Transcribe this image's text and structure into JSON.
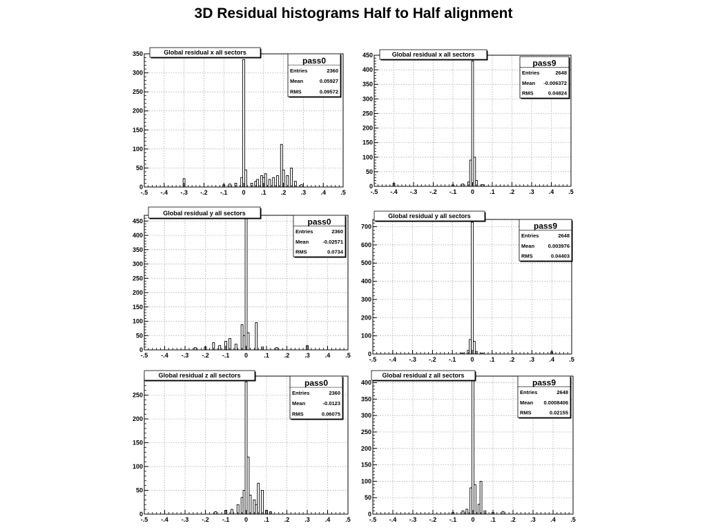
{
  "page_title": "3D Residual histograms Half to Half alignment",
  "chart_data": [
    {
      "type": "histogram",
      "histogram_title": "Global residual x all sectors",
      "xlim": [
        -0.5,
        0.5
      ],
      "ylim": [
        0,
        350
      ],
      "x_ticks": [
        -0.5,
        -0.4,
        -0.3,
        -0.2,
        -0.1,
        0,
        0.1,
        0.2,
        0.3,
        0.4,
        0.5
      ],
      "y_ticks": [
        0,
        50,
        100,
        150,
        200,
        250,
        300,
        350
      ],
      "grid": true,
      "stats": {
        "name": "pass0",
        "entries": "2360",
        "mean": "0.05927",
        "rms": "0.09572"
      },
      "bins": [
        {
          "x": -0.3,
          "y": 22
        },
        {
          "x": -0.1,
          "y": 6
        },
        {
          "x": -0.07,
          "y": 8
        },
        {
          "x": -0.04,
          "y": 10
        },
        {
          "x": -0.01,
          "y": 25
        },
        {
          "x": 0.0,
          "y": 335
        },
        {
          "x": 0.01,
          "y": 45
        },
        {
          "x": 0.04,
          "y": 10
        },
        {
          "x": 0.06,
          "y": 15
        },
        {
          "x": 0.07,
          "y": 20
        },
        {
          "x": 0.09,
          "y": 30
        },
        {
          "x": 0.1,
          "y": 25
        },
        {
          "x": 0.11,
          "y": 35
        },
        {
          "x": 0.13,
          "y": 20
        },
        {
          "x": 0.15,
          "y": 25
        },
        {
          "x": 0.17,
          "y": 30
        },
        {
          "x": 0.19,
          "y": 112
        },
        {
          "x": 0.2,
          "y": 45
        },
        {
          "x": 0.22,
          "y": 30
        },
        {
          "x": 0.24,
          "y": 50
        },
        {
          "x": 0.26,
          "y": 15
        },
        {
          "x": 0.29,
          "y": 6
        }
      ]
    },
    {
      "type": "histogram",
      "histogram_title": "Global residual x all sectors",
      "xlim": [
        -0.5,
        0.5
      ],
      "ylim": [
        0,
        450
      ],
      "x_ticks": [
        -0.5,
        -0.4,
        -0.3,
        -0.2,
        -0.1,
        0,
        0.1,
        0.2,
        0.3,
        0.4,
        0.5
      ],
      "y_ticks": [
        0,
        50,
        100,
        150,
        200,
        250,
        300,
        350,
        400,
        450
      ],
      "grid": true,
      "stats": {
        "name": "pass9",
        "entries": "2648",
        "mean": "-0.006372",
        "rms": "0.04824"
      },
      "bins": [
        {
          "x": -0.4,
          "y": 10
        },
        {
          "x": -0.1,
          "y": 5
        },
        {
          "x": -0.05,
          "y": 8
        },
        {
          "x": -0.02,
          "y": 15
        },
        {
          "x": -0.01,
          "y": 90
        },
        {
          "x": 0.0,
          "y": 430
        },
        {
          "x": 0.01,
          "y": 100
        },
        {
          "x": 0.02,
          "y": 20
        },
        {
          "x": 0.05,
          "y": 6
        }
      ]
    },
    {
      "type": "histogram",
      "histogram_title": "Global residual y all sectors",
      "xlim": [
        -0.5,
        0.5
      ],
      "ylim": [
        0,
        470
      ],
      "x_ticks": [
        -0.5,
        -0.4,
        -0.3,
        -0.2,
        -0.1,
        0,
        0.1,
        0.2,
        0.3,
        0.4,
        0.5
      ],
      "y_ticks": [
        0,
        50,
        100,
        150,
        200,
        250,
        300,
        350,
        400,
        450
      ],
      "grid": true,
      "stats": {
        "name": "pass0",
        "entries": "2360",
        "mean": "-0.02571",
        "rms": "0.0734"
      },
      "bins": [
        {
          "x": -0.25,
          "y": 8
        },
        {
          "x": -0.2,
          "y": 10
        },
        {
          "x": -0.16,
          "y": 25
        },
        {
          "x": -0.13,
          "y": 15
        },
        {
          "x": -0.1,
          "y": 30
        },
        {
          "x": -0.08,
          "y": 40
        },
        {
          "x": -0.05,
          "y": 20
        },
        {
          "x": -0.02,
          "y": 88
        },
        {
          "x": -0.01,
          "y": 50
        },
        {
          "x": 0.0,
          "y": 470
        },
        {
          "x": 0.01,
          "y": 60
        },
        {
          "x": 0.05,
          "y": 95
        },
        {
          "x": 0.08,
          "y": 10
        },
        {
          "x": 0.15,
          "y": 8
        },
        {
          "x": 0.3,
          "y": 15
        }
      ]
    },
    {
      "type": "histogram",
      "histogram_title": "Global residual y all sectors",
      "xlim": [
        -0.5,
        0.5
      ],
      "ylim": [
        0,
        740
      ],
      "x_ticks": [
        -0.5,
        -0.4,
        -0.3,
        -0.2,
        -0.1,
        0,
        0.1,
        0.2,
        0.3,
        0.4,
        0.5
      ],
      "y_ticks": [
        0,
        100,
        200,
        300,
        400,
        500,
        600,
        700
      ],
      "grid": true,
      "stats": {
        "name": "pass9",
        "entries": "2648",
        "mean": "0.003976",
        "rms": "0.04403"
      },
      "bins": [
        {
          "x": -0.05,
          "y": 6
        },
        {
          "x": -0.02,
          "y": 20
        },
        {
          "x": -0.01,
          "y": 80
        },
        {
          "x": 0.0,
          "y": 725
        },
        {
          "x": 0.01,
          "y": 70
        },
        {
          "x": 0.02,
          "y": 15
        },
        {
          "x": 0.05,
          "y": 5
        },
        {
          "x": 0.4,
          "y": 12
        }
      ]
    },
    {
      "type": "histogram",
      "histogram_title": "Global residual z all sectors",
      "xlim": [
        -0.5,
        0.5
      ],
      "ylim": [
        0,
        290
      ],
      "x_ticks": [
        -0.5,
        -0.4,
        -0.3,
        -0.2,
        -0.1,
        0,
        0.1,
        0.2,
        0.3,
        0.4,
        0.5
      ],
      "y_ticks": [
        0,
        50,
        100,
        150,
        200,
        250
      ],
      "grid": true,
      "stats": {
        "name": "pass0",
        "entries": "2360",
        "mean": "-0.0123",
        "rms": "0.06075"
      },
      "bins": [
        {
          "x": -0.15,
          "y": 5
        },
        {
          "x": -0.1,
          "y": 8
        },
        {
          "x": -0.07,
          "y": 10
        },
        {
          "x": -0.04,
          "y": 20
        },
        {
          "x": -0.02,
          "y": 35
        },
        {
          "x": -0.01,
          "y": 50
        },
        {
          "x": 0.0,
          "y": 278
        },
        {
          "x": 0.01,
          "y": 120
        },
        {
          "x": 0.02,
          "y": 40
        },
        {
          "x": 0.04,
          "y": 30
        },
        {
          "x": 0.05,
          "y": 20
        },
        {
          "x": 0.06,
          "y": 65
        },
        {
          "x": 0.08,
          "y": 50
        },
        {
          "x": 0.1,
          "y": 8
        },
        {
          "x": 0.12,
          "y": 5
        }
      ]
    },
    {
      "type": "histogram",
      "histogram_title": "Global residual z all sectors",
      "xlim": [
        -0.5,
        0.5
      ],
      "ylim": [
        0,
        420
      ],
      "x_ticks": [
        -0.5,
        -0.4,
        -0.3,
        -0.2,
        -0.1,
        0,
        0.1,
        0.2,
        0.3,
        0.4,
        0.5
      ],
      "y_ticks": [
        0,
        50,
        100,
        150,
        200,
        250,
        300,
        350,
        400
      ],
      "grid": true,
      "stats": {
        "name": "pass9",
        "entries": "2648",
        "mean": "0.0008406",
        "rms": "0.02155"
      },
      "bins": [
        {
          "x": -0.1,
          "y": 5
        },
        {
          "x": -0.05,
          "y": 10
        },
        {
          "x": -0.03,
          "y": 15
        },
        {
          "x": -0.01,
          "y": 80
        },
        {
          "x": 0.0,
          "y": 412
        },
        {
          "x": 0.01,
          "y": 90
        },
        {
          "x": 0.03,
          "y": 30
        },
        {
          "x": 0.04,
          "y": 100
        },
        {
          "x": 0.06,
          "y": 10
        },
        {
          "x": 0.1,
          "y": 5
        },
        {
          "x": 0.15,
          "y": 8
        }
      ]
    }
  ]
}
